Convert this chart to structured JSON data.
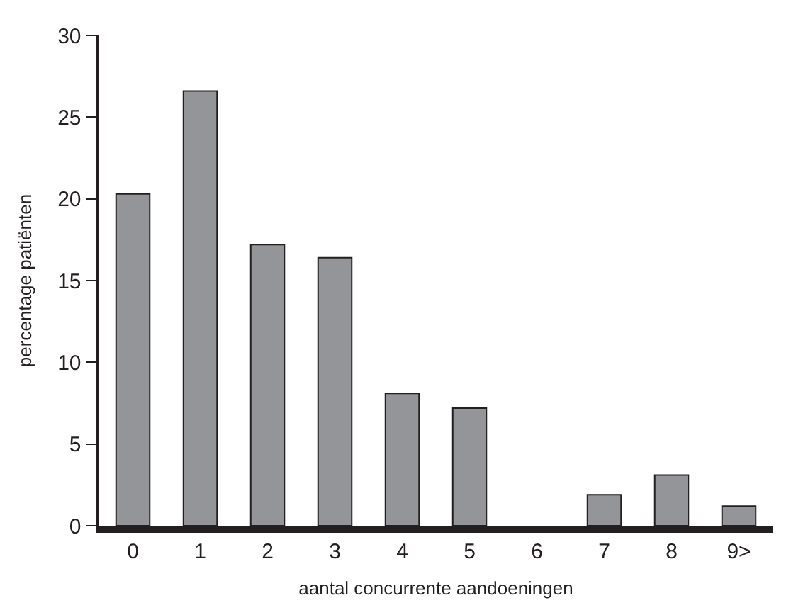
{
  "chart_data": {
    "type": "bar",
    "categories": [
      "0",
      "1",
      "2",
      "3",
      "4",
      "5",
      "6",
      "7",
      "8",
      "9>"
    ],
    "values": [
      20.3,
      26.6,
      17.2,
      16.4,
      8.1,
      7.2,
      0,
      1.9,
      3.1,
      1.2
    ],
    "color": "#939598",
    "xlabel": "aantal concurrente aandoeningen",
    "ylabel": "percentage patiënten",
    "ylim": [
      0,
      30
    ],
    "yticks": [
      0,
      5,
      10,
      15,
      20,
      25,
      30
    ]
  }
}
